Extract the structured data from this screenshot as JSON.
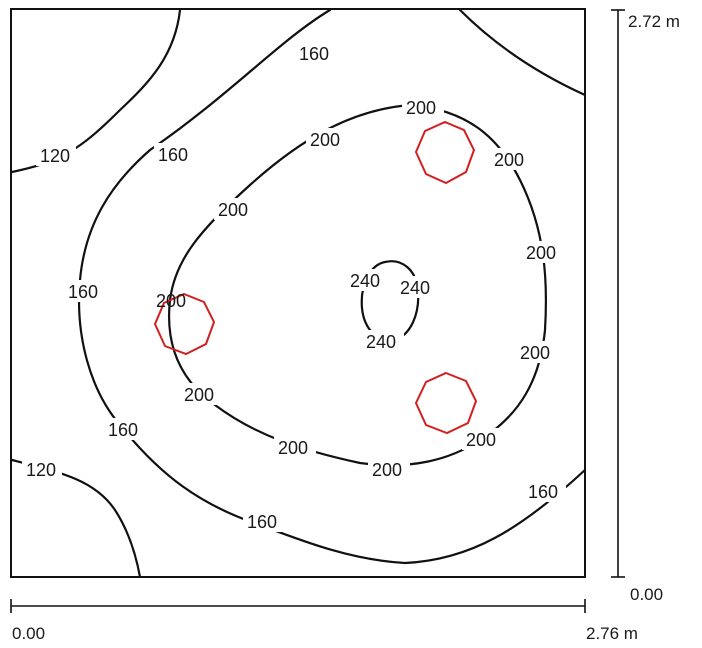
{
  "dimensions": {
    "width_label": "2.76 m",
    "width_origin": "0.00",
    "height_label": "2.72 m",
    "height_origin": "0.00"
  },
  "contour_labels": {
    "l120_top": "120",
    "l120_bottom": "120",
    "l160_top": "160",
    "l160_upper": "160",
    "l160_left": "160",
    "l160_lower_left": "160",
    "l160_bottom": "160",
    "l160_right": "160",
    "l200_top": "200",
    "l200_top_left": "200",
    "l200_mid_left": "200",
    "l200_right_top": "200",
    "l200_right_mid": "200",
    "l200_right_low": "200",
    "l200_lumi": "200",
    "l200_left_low": "200",
    "l200_bottom_left": "200",
    "l200_bottom_mid": "200",
    "l200_bottom_right": "200",
    "l240_left": "240",
    "l240_right": "240",
    "l240_bottom": "240"
  },
  "colors": {
    "contour": "#111111",
    "luminaire": "#d21f1f"
  }
}
